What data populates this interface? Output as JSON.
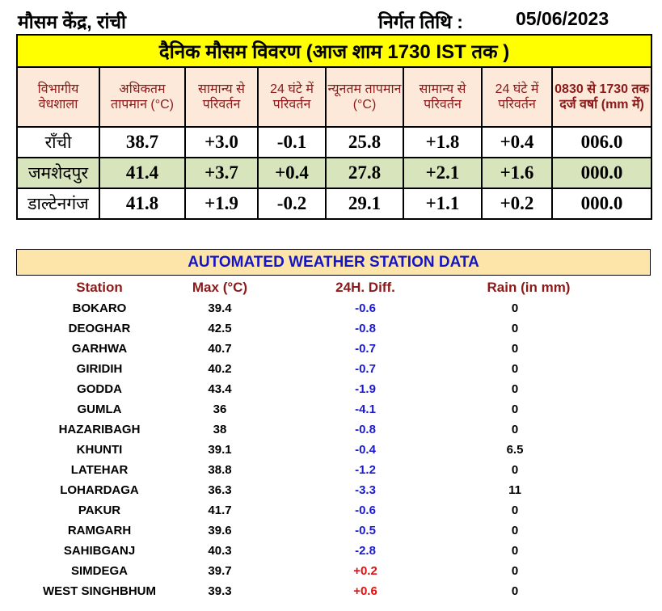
{
  "header": {
    "office": "मौसम केंद्र, रांची",
    "issue_label": "निर्गत तिथि :",
    "issue_date": "05/06/2023"
  },
  "daily": {
    "title": "दैनिक मौसम विवरण (आज शाम 1730 IST तक )",
    "columns": [
      "विभागीय वेधशाला",
      "अधिकतम तापमान (°C)",
      "सामान्य से परिवर्तन",
      "24 घंटे में परिवर्तन",
      "न्यूनतम तापमान (°C)",
      "सामान्य से परिवर्तन",
      "24 घंटे में परिवर्तन",
      "0830 से 1730 तक दर्ज वर्षा (mm में)"
    ],
    "rows": [
      [
        "राँची",
        "38.7",
        "+3.0",
        "-0.1",
        "25.8",
        "+1.8",
        "+0.4",
        "006.0"
      ],
      [
        "जमशेदपुर",
        "41.4",
        "+3.7",
        "+0.4",
        "27.8",
        "+2.1",
        "+1.6",
        "000.0"
      ],
      [
        "डाल्टेनगंज",
        "41.8",
        "+1.9",
        "-0.2",
        "29.1",
        "+1.1",
        "+0.2",
        "000.0"
      ]
    ]
  },
  "aws": {
    "title": "AUTOMATED WEATHER STATION DATA",
    "columns": [
      "Station",
      "Max (°C)",
      "24H. Diff.",
      "Rain (in mm)"
    ],
    "colors": {
      "negative": "#1a1acc",
      "positive": "#e01010"
    },
    "rows": [
      [
        "BOKARO",
        "39.4",
        "-0.6",
        "0"
      ],
      [
        "DEOGHAR",
        "42.5",
        "-0.8",
        "0"
      ],
      [
        "GARHWA",
        "40.7",
        "-0.7",
        "0"
      ],
      [
        "GIRIDIH",
        "40.2",
        "-0.7",
        "0"
      ],
      [
        "GODDA",
        "43.4",
        "-1.9",
        "0"
      ],
      [
        "GUMLA",
        "36",
        "-4.1",
        "0"
      ],
      [
        "HAZARIBAGH",
        "38",
        "-0.8",
        "0"
      ],
      [
        "KHUNTI",
        "39.1",
        "-0.4",
        "6.5"
      ],
      [
        "LATEHAR",
        "38.8",
        "-1.2",
        "0"
      ],
      [
        "LOHARDAGA",
        "36.3",
        "-3.3",
        "11"
      ],
      [
        "PAKUR",
        "41.7",
        "-0.6",
        "0"
      ],
      [
        "RAMGARH",
        "39.6",
        "-0.5",
        "0"
      ],
      [
        "SAHIBGANJ",
        "40.3",
        "-2.8",
        "0"
      ],
      [
        "SIMDEGA",
        "39.7",
        "+0.2",
        "0"
      ],
      [
        "WEST SINGHBHUM",
        "39.3",
        "+0.6",
        "0"
      ]
    ]
  }
}
